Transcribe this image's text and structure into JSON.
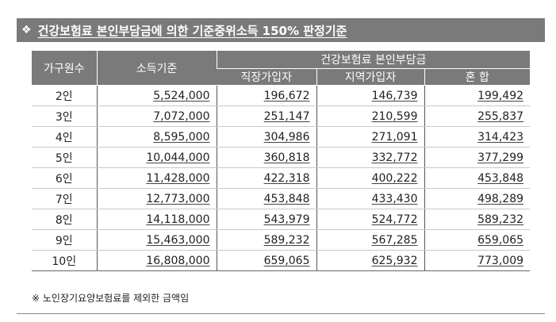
{
  "title": {
    "bullet": "❖",
    "text": "건강보험료 본인부담금에 의한 기준중위소득 150% 판정기준"
  },
  "table": {
    "headers": {
      "household": "가구원수",
      "income": "소득기준",
      "premium_group": "건강보험료 본인부담금",
      "employee": "직장가입자",
      "regional": "지역가입자",
      "mixed": "혼 합"
    },
    "rows": [
      {
        "household": "2인",
        "income": "5,524,000",
        "employee": "196,672",
        "regional": "146,739",
        "mixed": "199,492"
      },
      {
        "household": "3인",
        "income": "7,072,000",
        "employee": "251,147",
        "regional": "210,599",
        "mixed": "255,837"
      },
      {
        "household": "4인",
        "income": "8,595,000",
        "employee": "304,986",
        "regional": "271,091",
        "mixed": "314,423"
      },
      {
        "household": "5인",
        "income": "10,044,000",
        "employee": "360,818",
        "regional": "332,772",
        "mixed": "377,299"
      },
      {
        "household": "6인",
        "income": "11,428,000",
        "employee": "422,318",
        "regional": "400,222",
        "mixed": "453,848"
      },
      {
        "household": "7인",
        "income": "12,773,000",
        "employee": "453,848",
        "regional": "433,430",
        "mixed": "498,289"
      },
      {
        "household": "8인",
        "income": "14,118,000",
        "employee": "543,979",
        "regional": "524,772",
        "mixed": "589,232"
      },
      {
        "household": "9인",
        "income": "15,463,000",
        "employee": "589,232",
        "regional": "567,285",
        "mixed": "659,065"
      },
      {
        "household": "10인",
        "income": "16,808,000",
        "employee": "659,065",
        "regional": "625,932",
        "mixed": "773,009"
      }
    ]
  },
  "footnote": "※ 노인장기요양보험료를 제외한 금액임",
  "colors": {
    "header_bg": "#7a7a7a",
    "header_text": "#ffffff"
  }
}
